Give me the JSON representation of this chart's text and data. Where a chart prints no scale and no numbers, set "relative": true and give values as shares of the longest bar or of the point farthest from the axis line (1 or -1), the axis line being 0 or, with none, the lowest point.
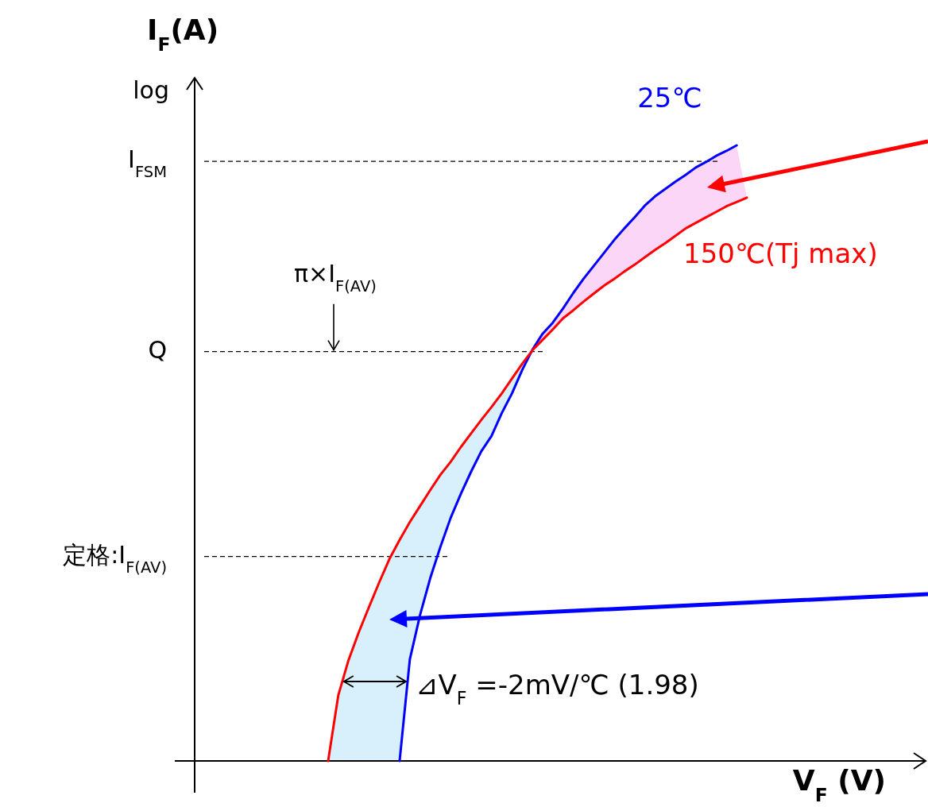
{
  "chart_data": {
    "type": "line",
    "relative": true,
    "xlabel": "V$_{F}$ (V)",
    "ylabel": "I$_{F}$(A)",
    "categories": [
      null,
      null,
      null,
      null,
      null,
      null,
      null,
      null,
      null,
      null,
      null,
      null,
      null,
      null,
      null,
      null,
      null,
      null,
      null,
      null,
      null,
      null,
      null,
      null,
      null,
      null,
      null,
      null,
      null,
      null,
      null,
      null,
      null,
      null,
      null,
      null,
      null,
      null,
      null,
      null,
      null,
      null
    ],
    "annotations": [
      "log",
      {
        "text": "π×I$_{F(AV)}$",
        "y": 0.665
      },
      "⊿V$_{F}$ =-2mV/℃ (1.98)"
    ],
    "ref_lines": [
      {
        "axis": "y",
        "value": 0.974,
        "label": "I$_{FSM}$",
        "line_style": "dashed",
        "color": "#000000"
      },
      {
        "axis": "y",
        "value": 0.665,
        "label": "Q",
        "line_style": "dashed",
        "color": "#000000"
      },
      {
        "axis": "y",
        "value": 0.332,
        "label": "定格:I$_{F(AV)}$",
        "line_style": "dashed",
        "color": "#000000"
      }
    ],
    "series": [
      {
        "name": "25℃",
        "color": "#0000ff",
        "values": [
          null,
          null,
          null,
          null,
          null,
          null,
          null,
          0,
          0.165,
          0.237,
          0.297,
          0.348,
          0.395,
          0.434,
          0.47,
          0.503,
          0.528,
          0.565,
          0.597,
          0.635,
          0.668,
          0.694,
          0.712,
          0.735,
          0.76,
          0.783,
          0.804,
          0.825,
          0.846,
          0.865,
          0.883,
          0.902,
          0.917,
          0.929,
          0.941,
          0.952,
          0.964,
          0.973,
          0.983,
          0.991,
          1,
          null
        ]
      },
      {
        "name": "150℃(Tj max)",
        "color": "#ff0000",
        "values": [
          0,
          0.107,
          0.164,
          0.209,
          0.25,
          0.29,
          0.328,
          0.359,
          0.388,
          0.414,
          0.44,
          0.465,
          0.486,
          0.51,
          0.532,
          0.554,
          0.575,
          0.597,
          0.621,
          0.645,
          0.667,
          0.684,
          0.701,
          0.719,
          0.732,
          0.746,
          0.759,
          0.772,
          0.783,
          0.795,
          0.806,
          0.818,
          0.83,
          0.841,
          0.853,
          0.865,
          0.874,
          0.883,
          0.892,
          0.901,
          0.908,
          0.915
        ]
      }
    ]
  }
}
